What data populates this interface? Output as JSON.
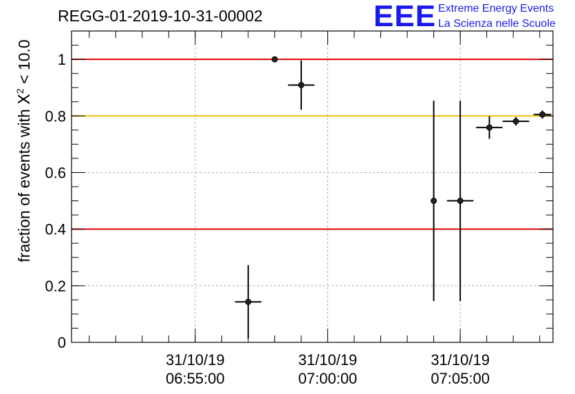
{
  "chart_data": {
    "type": "scatter",
    "title": "REGG-01-2019-10-31-00002",
    "ylabel": {
      "prefix": "fraction of events with ",
      "symbol": "X",
      "superscript": "2",
      "suffix": " < 10.0"
    },
    "xlabel": "",
    "x_axis": {
      "kind": "datetime",
      "range": [
        "31/10/19 06:50:20",
        "31/10/19 07:08:30"
      ],
      "tick_labels": [
        {
          "date": "31/10/19",
          "time": "06:55:00"
        },
        {
          "date": "31/10/19",
          "time": "07:00:00"
        },
        {
          "date": "31/10/19",
          "time": "07:05:00"
        }
      ]
    },
    "y_axis": {
      "range": [
        0,
        1.1
      ],
      "tick_labels": [
        "0",
        "0.2",
        "0.4",
        "0.6",
        "0.8",
        "1"
      ]
    },
    "grid": true,
    "reference_lines": [
      {
        "y": 1.0,
        "color": "#e00000"
      },
      {
        "y": 0.8,
        "color": "#f5c000"
      },
      {
        "y": 0.4,
        "color": "#e00000"
      }
    ],
    "points": [
      {
        "x": "06:57:00",
        "x_err_s": 30,
        "y": 0.143,
        "y_err": 0.13
      },
      {
        "x": "06:58:00",
        "x_err_s": 0,
        "y": 1.0,
        "y_err": 0.0
      },
      {
        "x": "06:59:00",
        "x_err_s": 30,
        "y": 0.909,
        "y_err": 0.087
      },
      {
        "x": "07:04:00",
        "x_err_s": 0,
        "y": 0.5,
        "y_err": 0.354
      },
      {
        "x": "07:05:00",
        "x_err_s": 30,
        "y": 0.5,
        "y_err": 0.354
      },
      {
        "x": "07:06:06",
        "x_err_s": 30,
        "y": 0.759,
        "y_err": 0.04
      },
      {
        "x": "07:07:06",
        "x_err_s": 30,
        "y": 0.781,
        "y_err": 0.015
      },
      {
        "x": "07:08:06",
        "x_err_s": 20,
        "y": 0.805,
        "y_err": 0.014
      }
    ]
  },
  "logo": {
    "mark": "EEE",
    "line1": "Extreme Energy Events",
    "line2": "La Scienza nelle Scuole"
  }
}
